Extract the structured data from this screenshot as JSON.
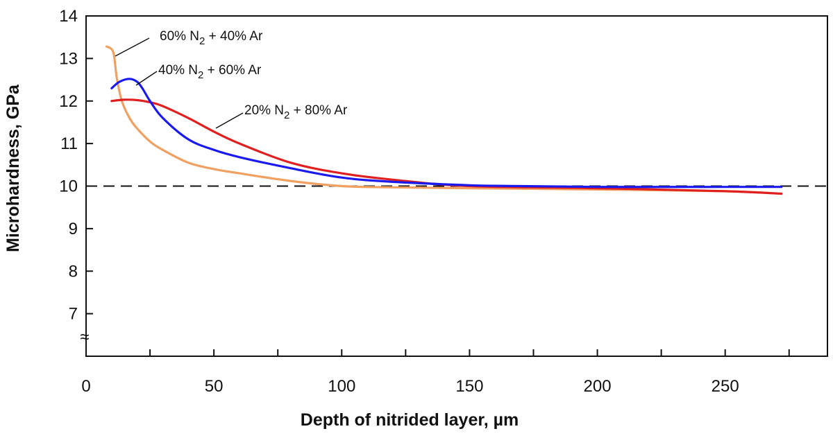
{
  "chart_data": {
    "type": "line",
    "title": "",
    "xlabel": "Depth of nitrided layer, µm",
    "ylabel": "Microhardness, GPa",
    "xlim": [
      0,
      290
    ],
    "ylim": [
      6,
      14
    ],
    "x_ticks": [
      0,
      50,
      100,
      150,
      200,
      250
    ],
    "y_ticks": [
      7,
      8,
      9,
      10,
      11,
      12,
      13,
      14
    ],
    "axis_break_symbol": "≈",
    "reference_line": {
      "y": 10,
      "style": "dashed"
    },
    "grid": false,
    "series": [
      {
        "name": "60% N2 + 40% Ar",
        "color": "#f0a060",
        "x": [
          8,
          10,
          11,
          12,
          14,
          17,
          20,
          25,
          30,
          40,
          50,
          60,
          80,
          100,
          120,
          150,
          200,
          250,
          272
        ],
        "y": [
          13.28,
          13.22,
          13.05,
          12.55,
          12.0,
          11.6,
          11.35,
          11.05,
          10.85,
          10.55,
          10.4,
          10.3,
          10.12,
          10.0,
          9.97,
          9.95,
          9.92,
          9.88,
          9.82
        ]
      },
      {
        "name": "40% N2 + 60% Ar",
        "color": "#1a1aee",
        "x": [
          10,
          13,
          17,
          20,
          22,
          25,
          30,
          40,
          50,
          60,
          80,
          100,
          120,
          150,
          170,
          200,
          250,
          272
        ],
        "y": [
          12.3,
          12.45,
          12.52,
          12.45,
          12.3,
          12.0,
          11.6,
          11.1,
          10.85,
          10.68,
          10.42,
          10.2,
          10.1,
          10.02,
          10.0,
          9.98,
          9.98,
          9.98
        ]
      },
      {
        "name": "20% N2 + 80% Ar",
        "color": "#e02020",
        "x": [
          10,
          15,
          20,
          25,
          30,
          40,
          50,
          60,
          80,
          100,
          120,
          150,
          200,
          250,
          272
        ],
        "y": [
          12.0,
          12.03,
          12.02,
          11.97,
          11.88,
          11.6,
          11.28,
          11.0,
          10.55,
          10.3,
          10.15,
          10.0,
          9.95,
          9.88,
          9.82
        ]
      }
    ],
    "annotations": [
      {
        "series": 0,
        "pre": "60% N",
        "sub": "2",
        "post": " + 40% Ar"
      },
      {
        "series": 1,
        "pre": "40% N",
        "sub": "2",
        "post": " + 60% Ar"
      },
      {
        "series": 2,
        "pre": "20% N",
        "sub": "2",
        "post": " + 80% Ar"
      }
    ]
  }
}
